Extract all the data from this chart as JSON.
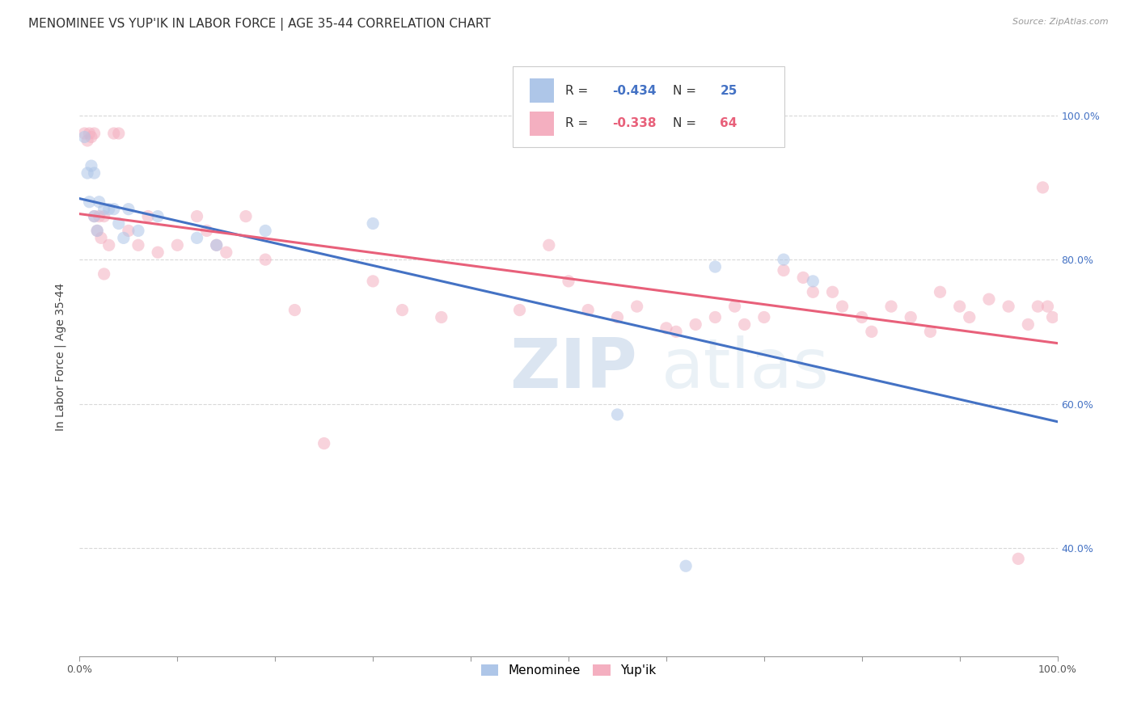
{
  "title": "MENOMINEE VS YUP'IK IN LABOR FORCE | AGE 35-44 CORRELATION CHART",
  "source": "Source: ZipAtlas.com",
  "ylabel": "In Labor Force | Age 35-44",
  "xlim": [
    0.0,
    1.0
  ],
  "ylim": [
    0.25,
    1.08
  ],
  "menominee_R": -0.434,
  "menominee_N": 25,
  "yupik_R": -0.338,
  "yupik_N": 64,
  "menominee_color": "#aec6e8",
  "yupik_color": "#f4afc0",
  "menominee_line_color": "#4472c4",
  "yupik_line_color": "#e8607a",
  "menominee_x": [
    0.005,
    0.008,
    0.01,
    0.012,
    0.015,
    0.015,
    0.018,
    0.02,
    0.025,
    0.03,
    0.035,
    0.04,
    0.045,
    0.05,
    0.06,
    0.08,
    0.12,
    0.14,
    0.19,
    0.3,
    0.55,
    0.62,
    0.65,
    0.72,
    0.75
  ],
  "menominee_y": [
    0.97,
    0.92,
    0.88,
    0.93,
    0.86,
    0.92,
    0.84,
    0.88,
    0.87,
    0.87,
    0.87,
    0.85,
    0.83,
    0.87,
    0.84,
    0.86,
    0.83,
    0.82,
    0.84,
    0.85,
    0.585,
    0.375,
    0.79,
    0.8,
    0.77
  ],
  "yupik_x": [
    0.005,
    0.008,
    0.01,
    0.012,
    0.015,
    0.015,
    0.018,
    0.02,
    0.022,
    0.025,
    0.025,
    0.03,
    0.035,
    0.04,
    0.05,
    0.06,
    0.07,
    0.08,
    0.1,
    0.12,
    0.13,
    0.14,
    0.15,
    0.17,
    0.19,
    0.22,
    0.25,
    0.3,
    0.33,
    0.37,
    0.45,
    0.48,
    0.5,
    0.52,
    0.55,
    0.57,
    0.6,
    0.61,
    0.63,
    0.65,
    0.67,
    0.68,
    0.7,
    0.72,
    0.74,
    0.75,
    0.77,
    0.78,
    0.8,
    0.81,
    0.83,
    0.85,
    0.87,
    0.88,
    0.9,
    0.91,
    0.93,
    0.95,
    0.96,
    0.97,
    0.98,
    0.985,
    0.99,
    0.995
  ],
  "yupik_y": [
    0.975,
    0.965,
    0.975,
    0.97,
    0.86,
    0.975,
    0.84,
    0.86,
    0.83,
    0.78,
    0.86,
    0.82,
    0.975,
    0.975,
    0.84,
    0.82,
    0.86,
    0.81,
    0.82,
    0.86,
    0.84,
    0.82,
    0.81,
    0.86,
    0.8,
    0.73,
    0.545,
    0.77,
    0.73,
    0.72,
    0.73,
    0.82,
    0.77,
    0.73,
    0.72,
    0.735,
    0.705,
    0.7,
    0.71,
    0.72,
    0.735,
    0.71,
    0.72,
    0.785,
    0.775,
    0.755,
    0.755,
    0.735,
    0.72,
    0.7,
    0.735,
    0.72,
    0.7,
    0.755,
    0.735,
    0.72,
    0.745,
    0.735,
    0.385,
    0.71,
    0.735,
    0.9,
    0.735,
    0.72
  ],
  "watermark_zip": "ZIP",
  "watermark_atlas": "atlas",
  "background_color": "#ffffff",
  "grid_color": "#d8d8d8",
  "title_fontsize": 11,
  "axis_label_fontsize": 10,
  "tick_fontsize": 9,
  "legend_fontsize": 11,
  "right_ytick_color": "#4472c4",
  "marker_size": 11,
  "marker_alpha": 0.55,
  "line_width": 2.2,
  "ytick_vals": [
    0.4,
    0.6,
    0.8,
    1.0
  ],
  "ytick_labels": [
    "40.0%",
    "60.0%",
    "80.0%",
    "100.0%"
  ]
}
